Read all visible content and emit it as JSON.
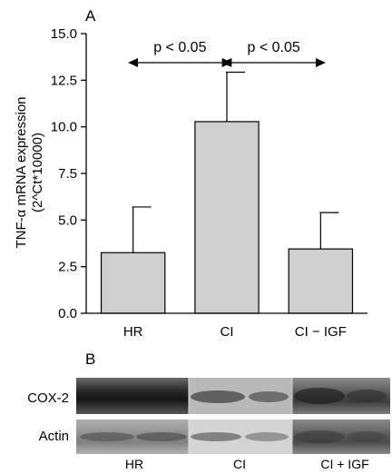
{
  "chart_data": {
    "type": "bar",
    "panel_label": "A",
    "categories": [
      "HR",
      "CI",
      "CI − IGF"
    ],
    "values": [
      3.25,
      10.28,
      3.45
    ],
    "errors": [
      2.45,
      2.65,
      1.95
    ],
    "ylabel_line1": "TNF-α mRNA expression",
    "ylabel_line2": "(2^Ct*10000)",
    "ylim": [
      0,
      15
    ],
    "yticks": [
      "0.0",
      "2.5",
      "5.0",
      "7.5",
      "10.0",
      "12.5",
      "15.0"
    ],
    "bar_color": "#cfcfcf",
    "comparisons": [
      {
        "from": 0,
        "to": 1,
        "label": "p < 0.05"
      },
      {
        "from": 1,
        "to": 2,
        "label": "p < 0.05"
      }
    ]
  },
  "blot": {
    "panel_label": "B",
    "rows": [
      "COX-2",
      "Actin"
    ],
    "lanes": [
      "HR",
      "CI",
      "CI + IGF"
    ]
  }
}
